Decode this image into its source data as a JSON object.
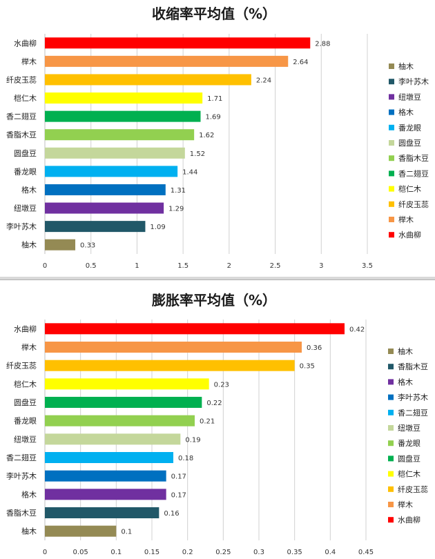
{
  "chart_data": [
    {
      "type": "bar",
      "orientation": "horizontal",
      "title": "收缩率平均值（%）",
      "categories": [
        "水曲柳",
        "榉木",
        "纤皮玉蕊",
        "桤仁木",
        "香二翅豆",
        "香脂木豆",
        "圆盘豆",
        "番龙眼",
        "格木",
        "纽墩豆",
        "李叶苏木",
        "柚木"
      ],
      "values": [
        2.88,
        2.64,
        2.24,
        1.71,
        1.69,
        1.62,
        1.52,
        1.44,
        1.31,
        1.29,
        1.09,
        0.33
      ],
      "value_labels": [
        "2.88",
        "2.64",
        "2.24",
        "1.71",
        "1.69",
        "1.62",
        "1.52",
        "1.44",
        "1.31",
        "1.29",
        "1.09",
        "0.33"
      ],
      "colors": [
        "#ff0000",
        "#f79646",
        "#ffc000",
        "#ffff00",
        "#00b050",
        "#92d050",
        "#c4d79b",
        "#00b0f0",
        "#0070c0",
        "#7030a0",
        "#215868",
        "#948a54"
      ],
      "xlim": [
        0,
        3.5
      ],
      "xticks": [
        "0",
        "0.5",
        "1",
        "1.5",
        "2",
        "2.5",
        "3",
        "3.5"
      ],
      "grid": true,
      "legend_position": "right",
      "legend": [
        "柚木",
        "李叶苏木",
        "纽墩豆",
        "格木",
        "番龙眼",
        "圆盘豆",
        "香脂木豆",
        "香二翅豆",
        "桤仁木",
        "纤皮玉蕊",
        "榉木",
        "水曲柳"
      ],
      "legend_colors": [
        "#948a54",
        "#215868",
        "#7030a0",
        "#0070c0",
        "#00b0f0",
        "#c4d79b",
        "#92d050",
        "#00b050",
        "#ffff00",
        "#ffc000",
        "#f79646",
        "#ff0000"
      ]
    },
    {
      "type": "bar",
      "orientation": "horizontal",
      "title": "膨胀率平均值（%）",
      "categories": [
        "水曲柳",
        "榉木",
        "纤皮玉蕊",
        "桤仁木",
        "圆盘豆",
        "番龙眼",
        "纽墩豆",
        "香二翅豆",
        "李叶苏木",
        "格木",
        "香脂木豆",
        "柚木"
      ],
      "values": [
        0.42,
        0.36,
        0.35,
        0.23,
        0.22,
        0.21,
        0.19,
        0.18,
        0.17,
        0.17,
        0.16,
        0.1
      ],
      "value_labels": [
        "0.42",
        "0.36",
        "0.35",
        "0.23",
        "0.22",
        "0.21",
        "0.19",
        "0.18",
        "0.17",
        "0.17",
        "0.16",
        "0.1"
      ],
      "colors": [
        "#ff0000",
        "#f79646",
        "#ffc000",
        "#ffff00",
        "#00b050",
        "#92d050",
        "#c4d79b",
        "#00b0f0",
        "#0070c0",
        "#7030a0",
        "#215868",
        "#948a54"
      ],
      "xlim": [
        0,
        0.45
      ],
      "xticks": [
        "0",
        "0.05",
        "0.1",
        "0.15",
        "0.2",
        "0.25",
        "0.3",
        "0.35",
        "0.4",
        "0.45"
      ],
      "grid": true,
      "legend_position": "right",
      "legend": [
        "柚木",
        "香脂木豆",
        "格木",
        "李叶苏木",
        "香二翅豆",
        "纽墩豆",
        "番龙眼",
        "圆盘豆",
        "桤仁木",
        "纤皮玉蕊",
        "榉木",
        "水曲柳"
      ],
      "legend_colors": [
        "#948a54",
        "#215868",
        "#7030a0",
        "#0070c0",
        "#00b0f0",
        "#c4d79b",
        "#92d050",
        "#00b050",
        "#ffff00",
        "#ffc000",
        "#f79646",
        "#ff0000"
      ]
    }
  ]
}
